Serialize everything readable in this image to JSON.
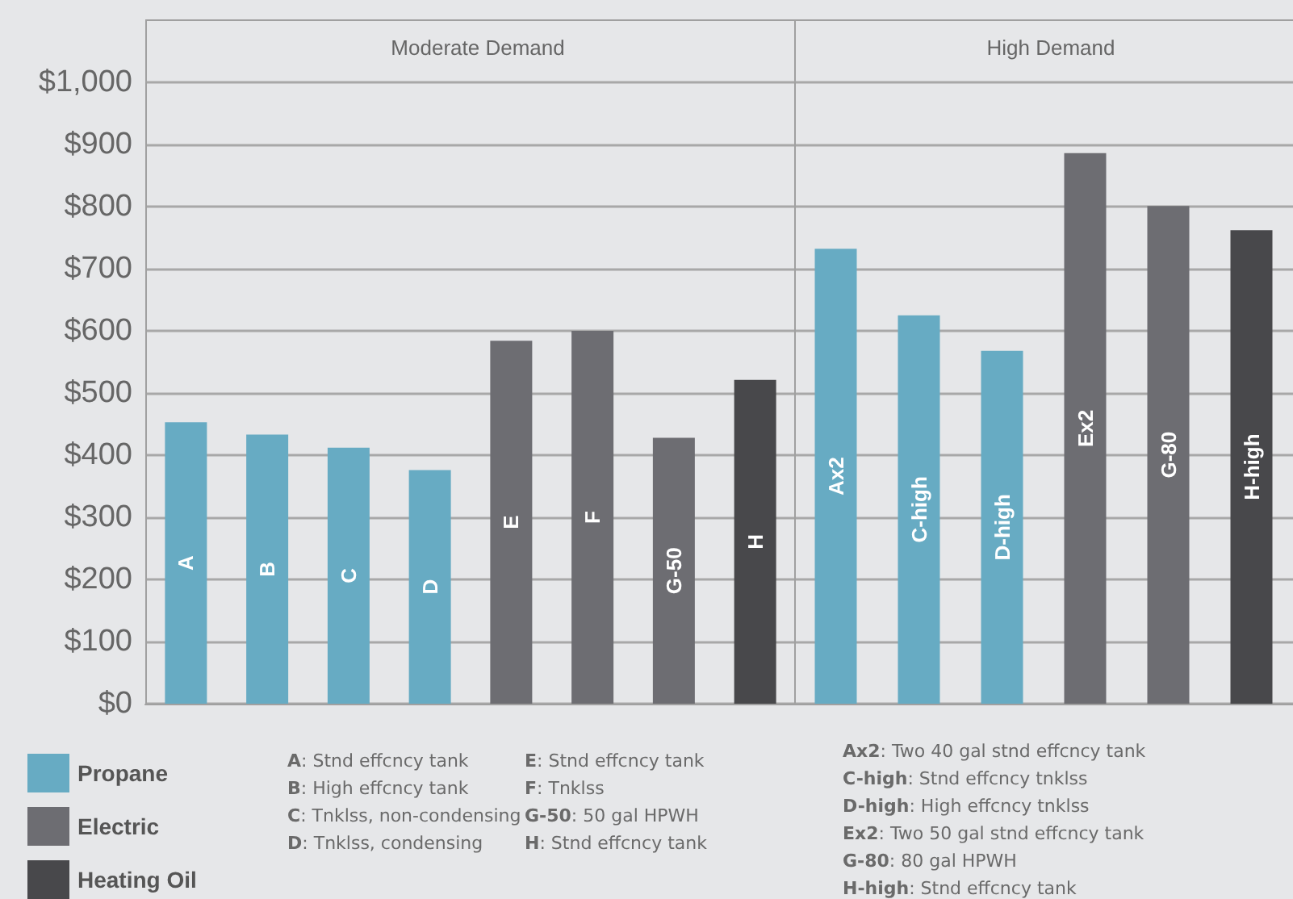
{
  "chart_data": [
    {
      "type": "bar",
      "title": "Moderate Demand",
      "categories": [
        "A",
        "B",
        "C",
        "D",
        "E",
        "F",
        "G-50",
        "H"
      ],
      "series": [
        {
          "name": "Propane",
          "color": "#67abc3",
          "values": [
            453,
            433,
            412,
            376,
            null,
            null,
            null,
            null
          ]
        },
        {
          "name": "Electric",
          "color": "#6d6d72",
          "values": [
            null,
            null,
            null,
            null,
            584,
            600,
            428,
            null
          ]
        },
        {
          "name": "Heating Oil",
          "color": "#48484b",
          "values": [
            null,
            null,
            null,
            null,
            null,
            null,
            null,
            521
          ]
        }
      ],
      "ylim": [
        0,
        1000
      ],
      "yticks": [
        {
          "value": 0,
          "label": "$0"
        },
        {
          "value": 100,
          "label": "$100"
        },
        {
          "value": 200,
          "label": "$200"
        },
        {
          "value": 300,
          "label": "$300"
        },
        {
          "value": 400,
          "label": "$400"
        },
        {
          "value": 500,
          "label": "$500"
        },
        {
          "value": 600,
          "label": "$600"
        },
        {
          "value": 700,
          "label": "$700"
        },
        {
          "value": 800,
          "label": "$800"
        },
        {
          "value": 900,
          "label": "$900"
        },
        {
          "value": 1000,
          "label": "$1,000"
        }
      ],
      "grid": "y",
      "legend": "bottom left",
      "annotations": [
        "A: Stnd effcncy tank",
        "B: High effcncy tank",
        "C: Tnklss, non-condensing",
        "D: Tnklss, condensing",
        "E: Stnd effcncy tank",
        "F: Tnklss",
        "G-50: 50 gal HPWH",
        "H: Stnd effcncy tank"
      ]
    },
    {
      "type": "bar",
      "title": "High Demand",
      "categories": [
        "Ax2",
        "C-high",
        "D-high",
        "Ex2",
        "G-80",
        "H-high"
      ],
      "series": [
        {
          "color": "#67abc3",
          "values": [
            732,
            625,
            568,
            null,
            null,
            null
          ]
        },
        {
          "color": "#6d6d72",
          "values": [
            null,
            null,
            null,
            886,
            801,
            null
          ]
        },
        {
          "color": "#48484b",
          "values": [
            null,
            null,
            null,
            null,
            null,
            762
          ]
        }
      ],
      "ylim": [
        0,
        1000
      ],
      "yticks": [
        0,
        100,
        200,
        300,
        400,
        500,
        600,
        700,
        800,
        900,
        1000
      ],
      "grid": "y",
      "tick_labels": false,
      "annotations": [
        "Ax2: Two 40 gal stnd effcncy tank",
        "C-high: Stnd effcncy tnklss",
        "D-high: High effcncy tnklss",
        "Ex2: Two 50 gal stnd effcncy tank",
        "G-80: 80 gal HPWH",
        "H-high: Stnd effcncy tank"
      ]
    }
  ]
}
